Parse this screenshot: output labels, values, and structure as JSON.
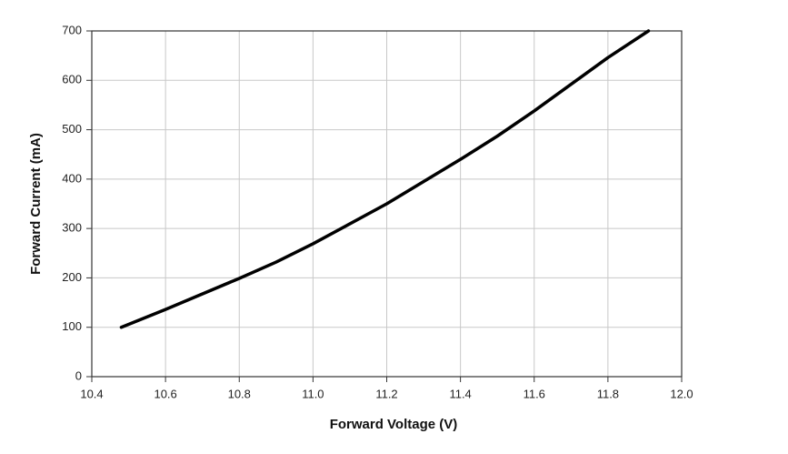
{
  "chart_data": {
    "type": "line",
    "x_label": "Forward Voltage (V)",
    "y_label": "Forward Current (mA)",
    "x": [
      10.48,
      10.6,
      10.8,
      10.9,
      11.0,
      11.2,
      11.4,
      11.5,
      11.6,
      11.8,
      11.91
    ],
    "values": [
      100,
      136,
      199,
      232,
      269,
      350,
      440,
      487,
      538,
      646,
      700
    ],
    "color": "#000000",
    "xlim": [
      10.4,
      12.0
    ],
    "xticks": [
      10.4,
      10.6,
      10.8,
      {
        "value": 11,
        "label": "11.0"
      },
      11.2,
      11.4,
      11.6,
      11.8,
      {
        "value": 12,
        "label": "12.0"
      }
    ],
    "ylim": [
      0,
      700
    ],
    "yticks": [
      0,
      100,
      200,
      300,
      400,
      500,
      600,
      700
    ],
    "grid": true
  }
}
